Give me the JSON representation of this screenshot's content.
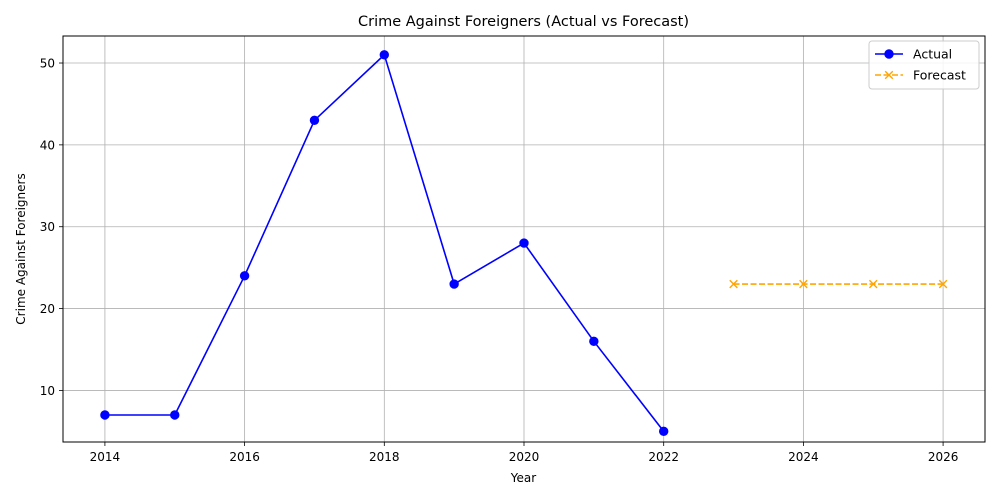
{
  "chart_data": {
    "type": "line",
    "title": "Crime Against Foreigners (Actual vs Forecast)",
    "xlabel": "Year",
    "ylabel": "Crime Against Foreigners",
    "xlim": [
      2013.4,
      2026.6
    ],
    "ylim": [
      3.7,
      53.3
    ],
    "xticks": [
      2014,
      2016,
      2018,
      2020,
      2022,
      2024,
      2026
    ],
    "yticks": [
      10,
      20,
      30,
      40,
      50
    ],
    "grid": true,
    "legend": "top-right",
    "series": [
      {
        "name": "Actual",
        "color": "#0000ff",
        "marker": "circle",
        "linestyle": "solid",
        "x": [
          2014,
          2015,
          2016,
          2017,
          2018,
          2019,
          2020,
          2021,
          2022
        ],
        "y": [
          7,
          7,
          24,
          43,
          51,
          23,
          28,
          16,
          5
        ]
      },
      {
        "name": "Forecast",
        "color": "#ffa500",
        "marker": "x",
        "linestyle": "dashed",
        "x": [
          2023,
          2024,
          2025,
          2026
        ],
        "y": [
          23,
          23,
          23,
          23
        ]
      }
    ]
  }
}
